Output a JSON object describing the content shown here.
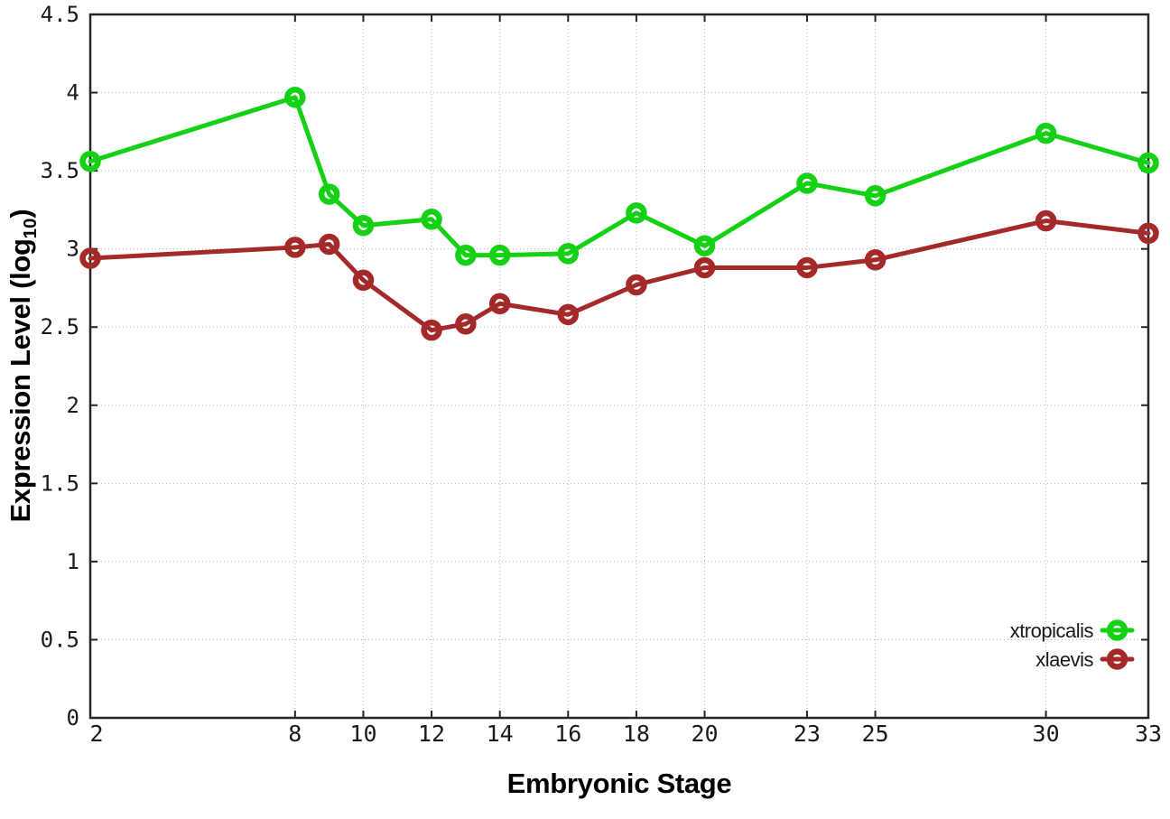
{
  "chart_data": {
    "type": "line",
    "title": "",
    "xlabel": "Embryonic Stage",
    "ylabel": {
      "pre": "Expression Level (log",
      "sub": "10",
      "post": ")"
    },
    "x": [
      2,
      8,
      9,
      10,
      12,
      13,
      14,
      16,
      18,
      20,
      23,
      25,
      30,
      33
    ],
    "series": [
      {
        "name": "xtropicalis",
        "color": "#15d115",
        "values": [
          3.56,
          3.97,
          3.35,
          3.15,
          3.19,
          2.96,
          2.96,
          2.97,
          3.23,
          3.02,
          3.42,
          3.34,
          3.74,
          3.55
        ]
      },
      {
        "name": "xlaevis",
        "color": "#a42a2a",
        "values": [
          2.94,
          3.01,
          3.03,
          2.8,
          2.48,
          2.52,
          2.65,
          2.58,
          2.77,
          2.88,
          2.88,
          2.93,
          3.18,
          3.1
        ]
      }
    ],
    "xlim": [
      2,
      33
    ],
    "ylim": [
      0,
      4.5
    ],
    "xticks": [
      2,
      8,
      10,
      12,
      14,
      16,
      18,
      20,
      23,
      25,
      30,
      33
    ],
    "xtick_labels": [
      "2",
      "8",
      "10",
      "12",
      "14",
      "16",
      "18",
      "20",
      "23",
      "25",
      "30",
      "33"
    ],
    "yticks": [
      0,
      0.5,
      1,
      1.5,
      2,
      2.5,
      3,
      3.5,
      4,
      4.5
    ],
    "ytick_labels": [
      "0",
      "0.5",
      "1",
      "1.5",
      "2",
      "2.5",
      "3",
      "3.5",
      "4",
      "4.5"
    ],
    "grid": true,
    "legend_position": "bottom-right"
  },
  "colors": {
    "background": "#ffffff",
    "axis": "#262626",
    "grid": "#b8b8b8",
    "tick_text": "#1a1a1a",
    "xtropicalis": "#15d115",
    "xlaevis": "#a42a2a"
  }
}
